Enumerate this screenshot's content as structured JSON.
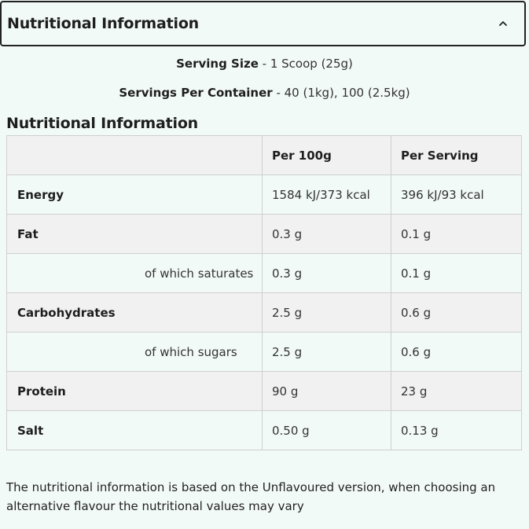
{
  "accordion": {
    "title": "Nutritional Information"
  },
  "serving": {
    "size_label": "Serving Size",
    "size_value": " - 1 Scoop (25g)",
    "per_container_label": "Servings Per Container",
    "per_container_value": " - 40 (1kg), 100 (2.5kg)"
  },
  "section": {
    "heading": "Nutritional Information"
  },
  "table": {
    "headers": [
      "",
      "Per 100g",
      "Per Serving"
    ],
    "rows": [
      {
        "name": "Energy",
        "sub": false,
        "per100": "1584 kJ/373 kcal",
        "serving": "396 kJ/93 kcal"
      },
      {
        "name": "Fat",
        "sub": false,
        "per100": "0.3 g",
        "serving": "0.1 g"
      },
      {
        "name": "of which saturates",
        "sub": true,
        "per100": "0.3 g",
        "serving": "0.1 g"
      },
      {
        "name": "Carbohydrates",
        "sub": false,
        "per100": "2.5 g",
        "serving": "0.6 g"
      },
      {
        "name": "of which sugars",
        "sub": true,
        "per100": "2.5 g",
        "serving": "0.6 g"
      },
      {
        "name": "Protein",
        "sub": false,
        "per100": "90 g",
        "serving": "23 g"
      },
      {
        "name": "Salt",
        "sub": false,
        "per100": "0.50 g",
        "serving": "0.13 g"
      }
    ]
  },
  "footnote": "The nutritional information is based on the Unflavoured version, when choosing an alternative flavour the nutritional values may vary",
  "icons": {
    "collapse": "chevron-up-icon"
  }
}
